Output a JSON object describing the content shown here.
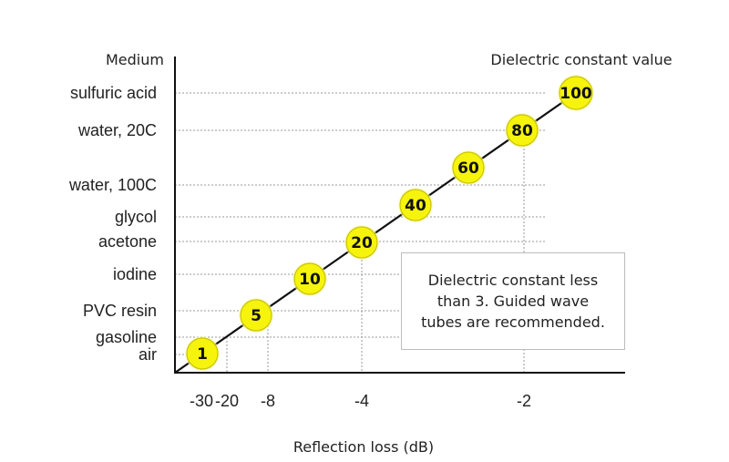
{
  "chart_data": {
    "type": "line",
    "title": "",
    "y_axis_title": "Medium",
    "series_title": "Dielectric constant value",
    "xlabel": "Reflection loss (dB)",
    "x_ticks": [
      "-30",
      "-20",
      "-8",
      "-4",
      "-2"
    ],
    "media": [
      "sulfuric acid",
      "water, 20C",
      "water, 100C",
      "glycol",
      "acetone",
      "iodine",
      "PVC resin",
      "gasoline",
      "air"
    ],
    "points": [
      {
        "value": "1",
        "medium": "air"
      },
      {
        "value": "5",
        "medium": "PVC resin"
      },
      {
        "value": "10",
        "medium": "iodine"
      },
      {
        "value": "20",
        "medium": "acetone"
      },
      {
        "value": "40",
        "medium": "glycol"
      },
      {
        "value": "60",
        "medium": "water, 100C"
      },
      {
        "value": "80",
        "medium": "water, 20C"
      },
      {
        "value": "100",
        "medium": "sulfuric acid"
      }
    ],
    "marker_color": "#f6f30d",
    "line_color": "#111111",
    "note": "Dielectric constant less than 3. Guided wave tubes are recommended."
  }
}
